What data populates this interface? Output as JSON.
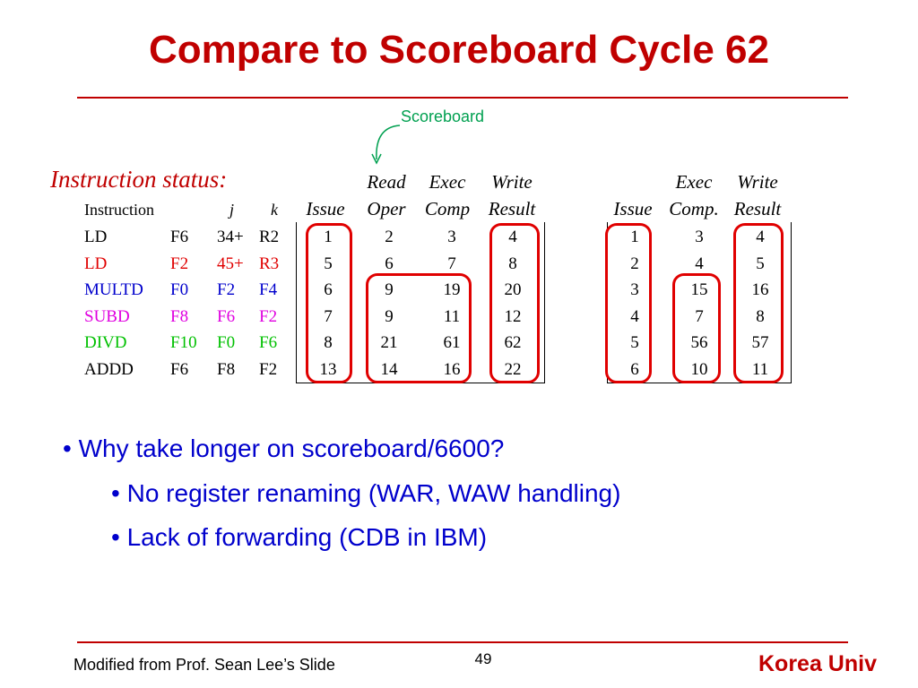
{
  "title": "Compare to Scoreboard Cycle 62",
  "annotation": "Scoreboard",
  "section_label": "Instruction status:",
  "header": {
    "read_top": "Read",
    "read_bottom": "Oper",
    "exec_top": "Exec",
    "exec_bottom": "Comp",
    "write_top": "Write",
    "write_bottom": "Result",
    "issue": "Issue",
    "instruction": "Instruction",
    "j": "j",
    "k": "k",
    "sb_exec_top": "Exec",
    "sb_exec_bottom": "Comp.",
    "sb_write_top": "Write",
    "sb_write_bottom": "Result",
    "sb_issue": "Issue"
  },
  "colors": {
    "title": "#c00000",
    "black": "#000000",
    "red": "#e00000",
    "blue": "#0000cc",
    "magenta": "#e000e0",
    "green": "#00c000",
    "annotation": "#00a050",
    "highlight_ring": "#e00000"
  },
  "rows": [
    {
      "op": "LD",
      "dest": "F6",
      "j": "34+",
      "k": "R2",
      "color": "#000000",
      "issue": "1",
      "read": "2",
      "exec": "3",
      "write": "4",
      "sb_issue": "1",
      "sb_exec": "3",
      "sb_write": "4"
    },
    {
      "op": "LD",
      "dest": "F2",
      "j": "45+",
      "k": "R3",
      "color": "#e00000",
      "issue": "5",
      "read": "6",
      "exec": "7",
      "write": "8",
      "sb_issue": "2",
      "sb_exec": "4",
      "sb_write": "5"
    },
    {
      "op": "MULTD",
      "dest": "F0",
      "j": "F2",
      "k": "F4",
      "color": "#0000cc",
      "issue": "6",
      "read": "9",
      "exec": "19",
      "write": "20",
      "sb_issue": "3",
      "sb_exec": "15",
      "sb_write": "16"
    },
    {
      "op": "SUBD",
      "dest": "F8",
      "j": "F6",
      "k": "F2",
      "color": "#e000e0",
      "issue": "7",
      "read": "9",
      "exec": "11",
      "write": "12",
      "sb_issue": "4",
      "sb_exec": "7",
      "sb_write": "8"
    },
    {
      "op": "DIVD",
      "dest": "F10",
      "j": "F0",
      "k": "F6",
      "color": "#00c000",
      "issue": "8",
      "read": "21",
      "exec": "61",
      "write": "62",
      "sb_issue": "5",
      "sb_exec": "56",
      "sb_write": "57"
    },
    {
      "op": "ADDD",
      "dest": "F6",
      "j": "F8",
      "k": "F2",
      "color": "#000000",
      "issue": "13",
      "read": "14",
      "exec": "16",
      "write": "22",
      "sb_issue": "6",
      "sb_exec": "10",
      "sb_write": "11"
    }
  ],
  "bullets": {
    "main": "Why take longer on scoreboard/6600?",
    "sub": [
      "No register renaming (WAR, WAW handling)",
      "Lack of forwarding (CDB in IBM)"
    ]
  },
  "footer": {
    "left": "Modified from Prof. Sean Lee’s Slide",
    "page": "49",
    "right": "Korea Univ"
  }
}
